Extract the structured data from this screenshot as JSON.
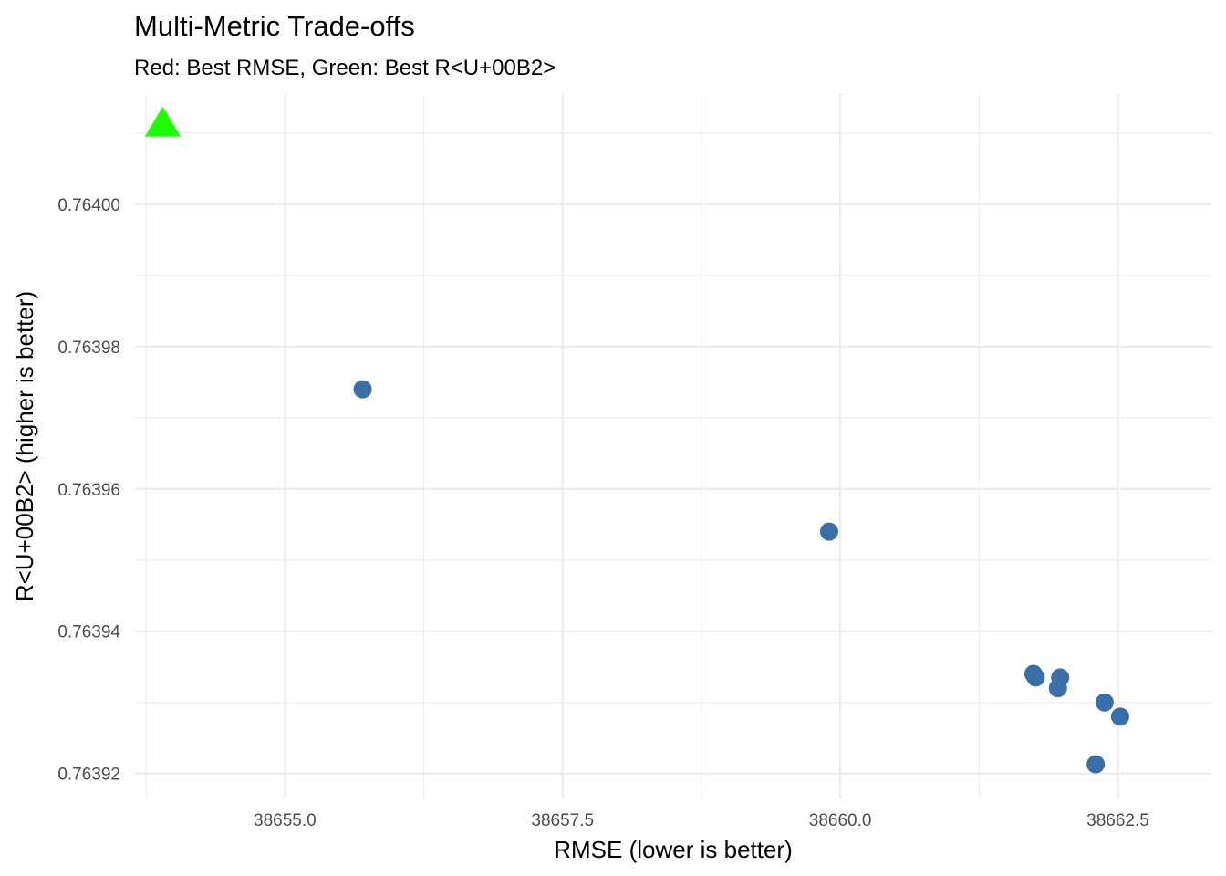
{
  "chart_data": {
    "type": "scatter",
    "title": "Multi-Metric Trade-offs",
    "subtitle": "Red: Best RMSE, Green: Best R<U+00B2>",
    "xlabel": "RMSE (lower is better)",
    "ylabel": "R<U+00B2> (higher is better)",
    "xlim": [
      38653.65,
      38663.35
    ],
    "ylim": [
      0.7639165,
      0.7640155
    ],
    "x_ticks": [
      38655.0,
      38657.5,
      38660.0,
      38662.5
    ],
    "x_tick_labels": [
      "38655.0",
      "38657.5",
      "38660.0",
      "38662.5"
    ],
    "x_minor_ticks": [
      38653.75,
      38656.25,
      38658.75,
      38661.25
    ],
    "y_ticks": [
      0.76392,
      0.76394,
      0.76396,
      0.76398,
      0.764
    ],
    "y_tick_labels": [
      "0.76392",
      "0.76394",
      "0.76396",
      "0.76398",
      "0.76400"
    ],
    "y_minor_ticks": [
      0.76393,
      0.76395,
      0.76397,
      0.76399,
      0.76401
    ],
    "grid": true,
    "series": [
      {
        "marker": "circle",
        "color": "#3A6FA8",
        "x": [
          38655.7,
          38659.9,
          38661.74,
          38661.76,
          38661.96,
          38661.98,
          38662.3,
          38662.38,
          38662.52
        ],
        "y": [
          0.763974,
          0.763954,
          0.763934,
          0.7639335,
          0.763932,
          0.7639335,
          0.7639213,
          0.76393,
          0.763928
        ]
      },
      {
        "marker": "triangle",
        "color": "#1EFF00",
        "x": [
          38653.9
        ],
        "y": [
          0.7640112
        ]
      }
    ]
  }
}
